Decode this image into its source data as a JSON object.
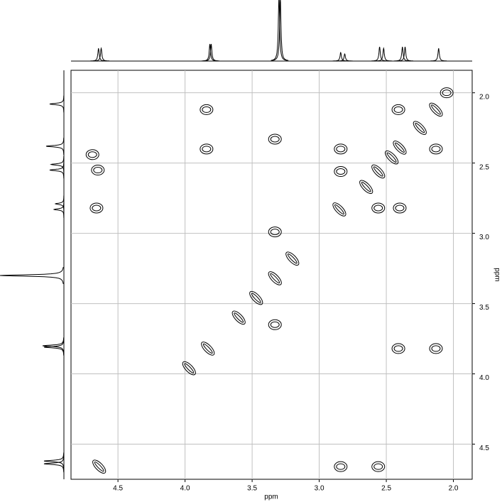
{
  "chart_data": {
    "type": "contour",
    "x_label": "ppm",
    "y_label": "ppm",
    "xlim": [
      4.85,
      1.86
    ],
    "ylim": [
      1.84,
      4.75
    ],
    "xticks": [
      4.5,
      {
        "value": 4,
        "label": "4.0"
      },
      3.5,
      {
        "value": 3,
        "label": "3.0"
      },
      2.5,
      {
        "value": 2,
        "label": "2.0"
      }
    ],
    "yticks": [
      {
        "value": 2,
        "label": "2.0"
      },
      2.5,
      {
        "value": 3,
        "label": "3.0"
      },
      3.5,
      {
        "value": 4,
        "label": "4.0"
      },
      4.5
    ],
    "grid": true,
    "color": "#000000",
    "peaks": {
      "x": [
        4.65,
        4.66,
        4.69,
        4.64,
        3.84,
        3.84,
        3.33,
        3.33,
        3.2,
        3.33,
        3.47,
        3.6,
        3.33,
        3.83,
        3.97,
        2.84,
        2.84,
        2.85,
        2.56,
        2.56,
        2.4,
        2.4,
        2.41,
        2.13,
        2.13,
        2.41,
        2.13,
        2.84,
        2.56,
        2.65,
        2.05,
        2.25,
        2.46
      ],
      "y": [
        2.55,
        2.82,
        2.44,
        4.66,
        2.12,
        2.4,
        2.33,
        2.99,
        3.18,
        3.32,
        3.46,
        3.6,
        3.65,
        3.82,
        3.96,
        2.4,
        2.56,
        2.83,
        2.56,
        2.82,
        2.82,
        2.39,
        2.12,
        2.4,
        2.12,
        3.82,
        3.82,
        4.66,
        4.66,
        2.67,
        2.0,
        2.25,
        2.46
      ]
    },
    "projection_x": {
      "ppm": [
        4.645,
        4.625,
        3.815,
        3.805,
        3.3,
        3.29,
        2.84,
        2.81,
        2.55,
        2.52,
        2.38,
        2.36,
        2.11
      ],
      "intensity": [
        18,
        18,
        24,
        24,
        90,
        88,
        12,
        10,
        20,
        18,
        20,
        20,
        18
      ]
    },
    "projection_y": {
      "ppm": [
        2.08,
        2.38,
        2.51,
        2.55,
        2.79,
        2.83,
        3.3,
        3.8,
        3.81,
        4.62,
        4.64
      ],
      "intensity": [
        20,
        25,
        18,
        20,
        12,
        14,
        90,
        30,
        28,
        28,
        28
      ]
    }
  }
}
